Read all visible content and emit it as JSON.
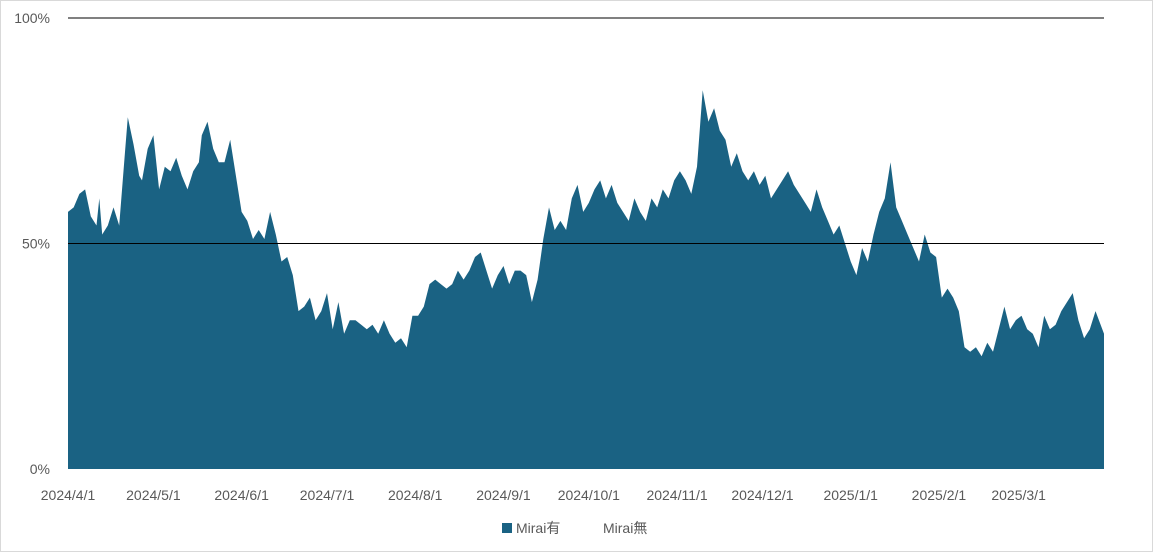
{
  "chart_data": {
    "type": "area",
    "stacked_percent": true,
    "y_axis": {
      "ticks": [
        0,
        50,
        100
      ],
      "tick_labels": [
        "0%",
        "50%",
        "100%"
      ],
      "ylim": [
        0,
        100
      ]
    },
    "x_axis": {
      "tick_labels": [
        "2024/4/1",
        "2024/5/1",
        "2024/6/1",
        "2024/7/1",
        "2024/8/1",
        "2024/9/1",
        "2024/10/1",
        "2024/11/1",
        "2024/12/1",
        "2025/1/1",
        "2025/2/1",
        "2025/3/1"
      ],
      "start": "2024-04-01",
      "end": "2025-03-31"
    },
    "grid": {
      "horizontal": true,
      "lines_at": [
        50,
        100
      ]
    },
    "legend_position": "bottom",
    "series": [
      {
        "name": "Mirai有",
        "color": "#1a6283",
        "points": [
          [
            "2024-04-01",
            57
          ],
          [
            "2024-04-03",
            58
          ],
          [
            "2024-04-05",
            61
          ],
          [
            "2024-04-07",
            62
          ],
          [
            "2024-04-09",
            56
          ],
          [
            "2024-04-11",
            54
          ],
          [
            "2024-04-12",
            60
          ],
          [
            "2024-04-13",
            52
          ],
          [
            "2024-04-15",
            54
          ],
          [
            "2024-04-17",
            58
          ],
          [
            "2024-04-19",
            54
          ],
          [
            "2024-04-21",
            70
          ],
          [
            "2024-04-22",
            78
          ],
          [
            "2024-04-24",
            72
          ],
          [
            "2024-04-26",
            65
          ],
          [
            "2024-04-27",
            64
          ],
          [
            "2024-04-29",
            71
          ],
          [
            "2024-05-01",
            74
          ],
          [
            "2024-05-03",
            62
          ],
          [
            "2024-05-05",
            67
          ],
          [
            "2024-05-07",
            66
          ],
          [
            "2024-05-09",
            69
          ],
          [
            "2024-05-11",
            65
          ],
          [
            "2024-05-13",
            62
          ],
          [
            "2024-05-15",
            66
          ],
          [
            "2024-05-17",
            68
          ],
          [
            "2024-05-18",
            74
          ],
          [
            "2024-05-20",
            77
          ],
          [
            "2024-05-22",
            71
          ],
          [
            "2024-05-24",
            68
          ],
          [
            "2024-05-26",
            68
          ],
          [
            "2024-05-28",
            73
          ],
          [
            "2024-05-30",
            65
          ],
          [
            "2024-06-01",
            57
          ],
          [
            "2024-06-03",
            55
          ],
          [
            "2024-06-05",
            51
          ],
          [
            "2024-06-07",
            53
          ],
          [
            "2024-06-09",
            51
          ],
          [
            "2024-06-11",
            57
          ],
          [
            "2024-06-13",
            52
          ],
          [
            "2024-06-15",
            46
          ],
          [
            "2024-06-17",
            47
          ],
          [
            "2024-06-19",
            43
          ],
          [
            "2024-06-21",
            35
          ],
          [
            "2024-06-23",
            36
          ],
          [
            "2024-06-25",
            38
          ],
          [
            "2024-06-27",
            33
          ],
          [
            "2024-06-29",
            35
          ],
          [
            "2024-07-01",
            39
          ],
          [
            "2024-07-03",
            31
          ],
          [
            "2024-07-05",
            37
          ],
          [
            "2024-07-07",
            30
          ],
          [
            "2024-07-09",
            33
          ],
          [
            "2024-07-11",
            33
          ],
          [
            "2024-07-13",
            32
          ],
          [
            "2024-07-15",
            31
          ],
          [
            "2024-07-17",
            32
          ],
          [
            "2024-07-19",
            30
          ],
          [
            "2024-07-21",
            33
          ],
          [
            "2024-07-23",
            30
          ],
          [
            "2024-07-25",
            28
          ],
          [
            "2024-07-27",
            29
          ],
          [
            "2024-07-29",
            27
          ],
          [
            "2024-07-31",
            34
          ],
          [
            "2024-08-02",
            34
          ],
          [
            "2024-08-04",
            36
          ],
          [
            "2024-08-06",
            41
          ],
          [
            "2024-08-08",
            42
          ],
          [
            "2024-08-10",
            41
          ],
          [
            "2024-08-12",
            40
          ],
          [
            "2024-08-14",
            41
          ],
          [
            "2024-08-16",
            44
          ],
          [
            "2024-08-18",
            42
          ],
          [
            "2024-08-20",
            44
          ],
          [
            "2024-08-22",
            47
          ],
          [
            "2024-08-24",
            48
          ],
          [
            "2024-08-26",
            44
          ],
          [
            "2024-08-28",
            40
          ],
          [
            "2024-08-30",
            43
          ],
          [
            "2024-09-01",
            45
          ],
          [
            "2024-09-03",
            41
          ],
          [
            "2024-09-05",
            44
          ],
          [
            "2024-09-07",
            44
          ],
          [
            "2024-09-09",
            43
          ],
          [
            "2024-09-11",
            37
          ],
          [
            "2024-09-13",
            42
          ],
          [
            "2024-09-15",
            51
          ],
          [
            "2024-09-17",
            58
          ],
          [
            "2024-09-19",
            53
          ],
          [
            "2024-09-21",
            55
          ],
          [
            "2024-09-23",
            53
          ],
          [
            "2024-09-25",
            60
          ],
          [
            "2024-09-27",
            63
          ],
          [
            "2024-09-29",
            57
          ],
          [
            "2024-10-01",
            59
          ],
          [
            "2024-10-03",
            62
          ],
          [
            "2024-10-05",
            64
          ],
          [
            "2024-10-07",
            60
          ],
          [
            "2024-10-09",
            63
          ],
          [
            "2024-10-11",
            59
          ],
          [
            "2024-10-13",
            57
          ],
          [
            "2024-10-15",
            55
          ],
          [
            "2024-10-17",
            60
          ],
          [
            "2024-10-19",
            57
          ],
          [
            "2024-10-21",
            55
          ],
          [
            "2024-10-23",
            60
          ],
          [
            "2024-10-25",
            58
          ],
          [
            "2024-10-27",
            62
          ],
          [
            "2024-10-29",
            60
          ],
          [
            "2024-10-31",
            64
          ],
          [
            "2024-11-02",
            66
          ],
          [
            "2024-11-04",
            64
          ],
          [
            "2024-11-06",
            61
          ],
          [
            "2024-11-08",
            67
          ],
          [
            "2024-11-10",
            84
          ],
          [
            "2024-11-12",
            77
          ],
          [
            "2024-11-14",
            80
          ],
          [
            "2024-11-16",
            75
          ],
          [
            "2024-11-18",
            73
          ],
          [
            "2024-11-20",
            67
          ],
          [
            "2024-11-22",
            70
          ],
          [
            "2024-11-24",
            66
          ],
          [
            "2024-11-26",
            64
          ],
          [
            "2024-11-28",
            66
          ],
          [
            "2024-11-30",
            63
          ],
          [
            "2024-12-02",
            65
          ],
          [
            "2024-12-04",
            60
          ],
          [
            "2024-12-06",
            62
          ],
          [
            "2024-12-08",
            64
          ],
          [
            "2024-12-10",
            66
          ],
          [
            "2024-12-12",
            63
          ],
          [
            "2024-12-14",
            61
          ],
          [
            "2024-12-16",
            59
          ],
          [
            "2024-12-18",
            57
          ],
          [
            "2024-12-20",
            62
          ],
          [
            "2024-12-22",
            58
          ],
          [
            "2024-12-24",
            55
          ],
          [
            "2024-12-26",
            52
          ],
          [
            "2024-12-28",
            54
          ],
          [
            "2024-12-30",
            50
          ],
          [
            "2025-01-01",
            46
          ],
          [
            "2025-01-03",
            43
          ],
          [
            "2025-01-05",
            49
          ],
          [
            "2025-01-07",
            46
          ],
          [
            "2025-01-09",
            52
          ],
          [
            "2025-01-11",
            57
          ],
          [
            "2025-01-13",
            60
          ],
          [
            "2025-01-15",
            68
          ],
          [
            "2025-01-17",
            58
          ],
          [
            "2025-01-19",
            55
          ],
          [
            "2025-01-21",
            52
          ],
          [
            "2025-01-23",
            49
          ],
          [
            "2025-01-25",
            46
          ],
          [
            "2025-01-27",
            52
          ],
          [
            "2025-01-29",
            48
          ],
          [
            "2025-01-31",
            47
          ],
          [
            "2025-02-02",
            38
          ],
          [
            "2025-02-04",
            40
          ],
          [
            "2025-02-06",
            38
          ],
          [
            "2025-02-08",
            35
          ],
          [
            "2025-02-10",
            27
          ],
          [
            "2025-02-12",
            26
          ],
          [
            "2025-02-14",
            27
          ],
          [
            "2025-02-16",
            25
          ],
          [
            "2025-02-18",
            28
          ],
          [
            "2025-02-20",
            26
          ],
          [
            "2025-02-22",
            31
          ],
          [
            "2025-02-24",
            36
          ],
          [
            "2025-02-26",
            31
          ],
          [
            "2025-02-28",
            33
          ],
          [
            "2025-03-02",
            34
          ],
          [
            "2025-03-04",
            31
          ],
          [
            "2025-03-06",
            30
          ],
          [
            "2025-03-08",
            27
          ],
          [
            "2025-03-10",
            34
          ],
          [
            "2025-03-12",
            31
          ],
          [
            "2025-03-14",
            32
          ],
          [
            "2025-03-16",
            35
          ],
          [
            "2025-03-18",
            37
          ],
          [
            "2025-03-20",
            39
          ],
          [
            "2025-03-22",
            33
          ],
          [
            "2025-03-24",
            29
          ],
          [
            "2025-03-26",
            31
          ],
          [
            "2025-03-28",
            35
          ],
          [
            "2025-03-31",
            30
          ]
        ]
      },
      {
        "name": "Mirai無",
        "color": "#ffffff"
      }
    ]
  }
}
